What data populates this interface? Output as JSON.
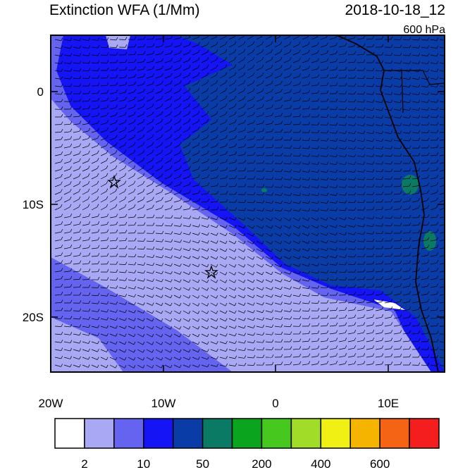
{
  "header": {
    "title": "Extinction WFA (1/Mm)",
    "time": "2018-10-18_12",
    "level": "600 hPa"
  },
  "map": {
    "lon_labels": [
      "20W",
      "10W",
      "0",
      "10E"
    ],
    "lat_labels": [
      "0",
      "10S",
      "20S"
    ]
  },
  "colorbar": {
    "colors": [
      "#ffffff",
      "#a8a8f5",
      "#6464f0",
      "#1414f5",
      "#0a3ca8",
      "#0a7a64",
      "#0aa41e",
      "#46c81e",
      "#a0dc28",
      "#f0f014",
      "#f5b400",
      "#f56414",
      "#f51e1e"
    ],
    "labels": [
      "2",
      "10",
      "50",
      "200",
      "400",
      "600"
    ]
  }
}
